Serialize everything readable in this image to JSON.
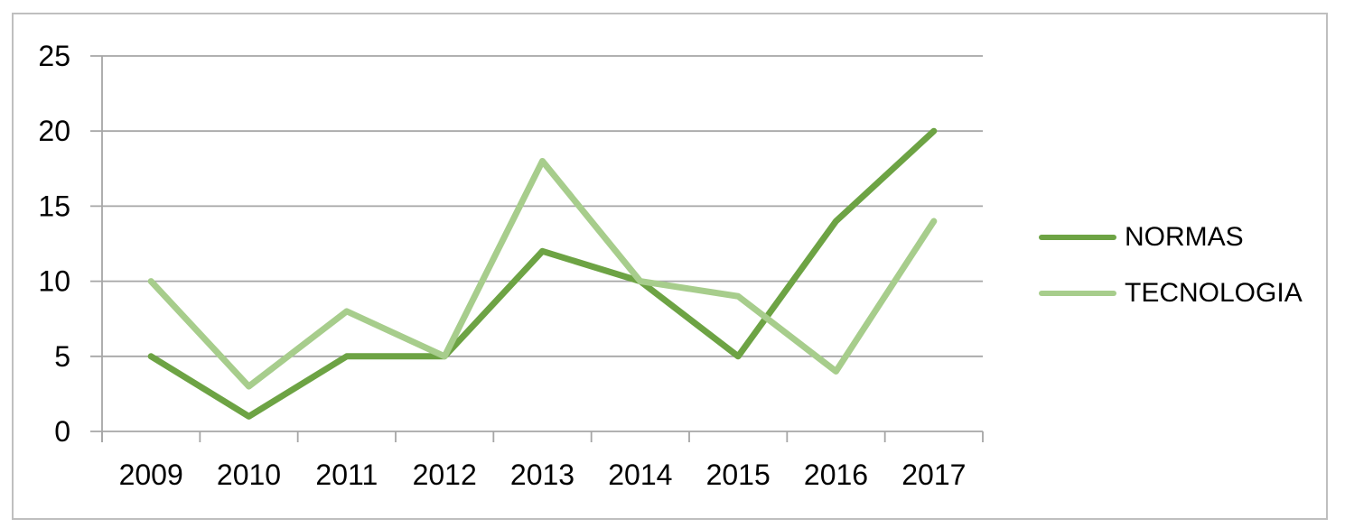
{
  "theme": {
    "background": "#FFFFFF",
    "border_color": "#BFBFBF",
    "grid_color": "#A6A6A6",
    "axis_color": "#A6A6A6",
    "text_color": "#000000"
  },
  "chart_data": {
    "type": "line",
    "title": "",
    "xlabel": "",
    "ylabel": "",
    "categories": [
      "2009",
      "2010",
      "2011",
      "2012",
      "2013",
      "2014",
      "2015",
      "2016",
      "2017"
    ],
    "series": [
      {
        "name": "NORMAS",
        "color": "#6DA344",
        "values": [
          5,
          1,
          5,
          5,
          12,
          10,
          5,
          14,
          20
        ]
      },
      {
        "name": "TECNOLOGIA",
        "color": "#A7CD8C",
        "values": [
          10,
          3,
          8,
          5,
          18,
          10,
          9,
          4,
          14
        ]
      }
    ],
    "ylim": [
      0,
      25
    ],
    "yticks": [
      0,
      5,
      10,
      15,
      20,
      25
    ],
    "grid": true,
    "legend_position": "right"
  }
}
